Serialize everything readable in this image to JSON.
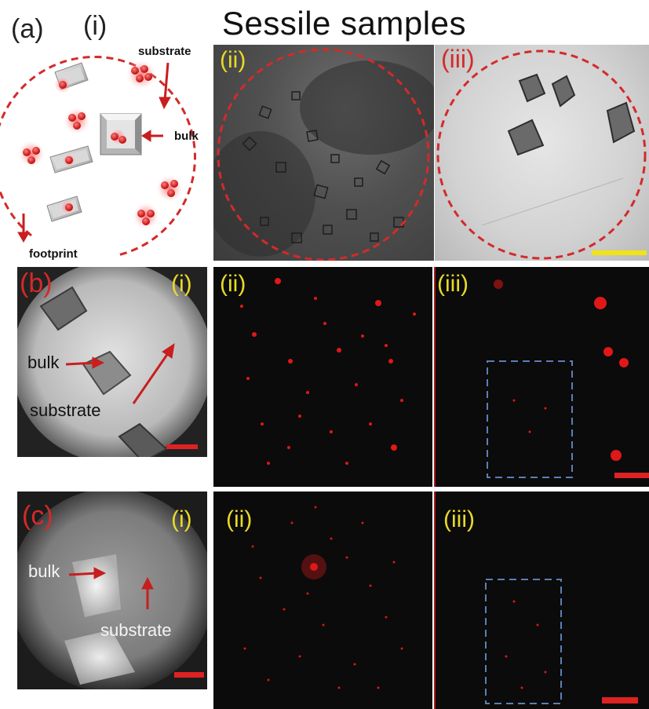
{
  "figure": {
    "title": "Sessile samples",
    "row_a": {
      "label": "(a)",
      "i": "(i)",
      "ii": "(ii)",
      "iii": "(iii)",
      "annotations": {
        "substrate": "substrate",
        "bulk": "bulk",
        "footprint": "footprint"
      }
    },
    "row_b": {
      "label": "(b)",
      "i": "(i)",
      "ii": "(ii)",
      "iii": "(iii)",
      "annotations": {
        "bulk": "bulk",
        "substrate": "substrate"
      }
    },
    "row_c": {
      "label": "(c)",
      "i": "(i)",
      "ii": "(ii)",
      "iii": "(iii)",
      "annotations": {
        "bulk": "bulk",
        "substrate": "substrate"
      }
    },
    "colors": {
      "label_red": "#d42a2a",
      "label_yellow": "#e8d928",
      "scale_red": "#dd2222",
      "scale_yellow": "#f2e411",
      "dash_circle": "#d42a2a",
      "dash_box": "#5b7fb5"
    }
  }
}
